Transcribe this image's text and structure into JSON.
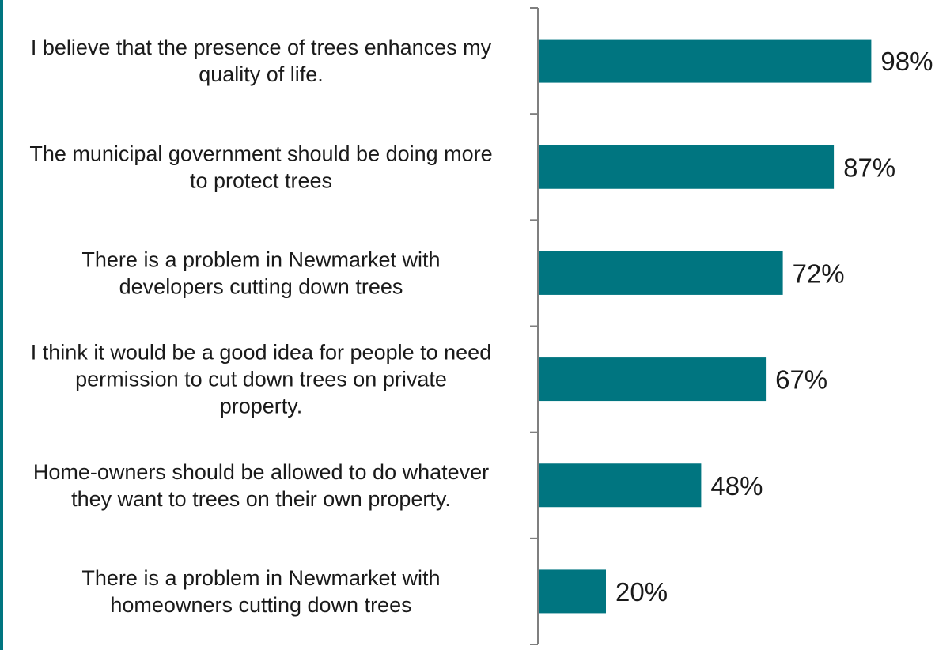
{
  "colors": {
    "bar": "#007580",
    "axis": "#7f7f7f",
    "edge": "#007580"
  },
  "chart_data": {
    "type": "bar",
    "orientation": "horizontal",
    "categories": [
      "I believe that the presence of trees enhances my quality of life.",
      "The municipal government should be doing more to protect trees",
      "There is a problem in Newmarket with developers cutting down trees",
      "I think it would be a good idea for people to need permission to cut down trees on private property.",
      "Home-owners should be allowed to do whatever they want to trees on their own property.",
      "There is a problem in Newmarket with homeowners cutting down trees"
    ],
    "label_lines": [
      [
        "I believe that the presence of trees enhances my",
        "quality of life."
      ],
      [
        "The municipal government should be doing more",
        "to protect trees"
      ],
      [
        "There is a problem in Newmarket with",
        "developers cutting down trees"
      ],
      [
        "I think it would be a good idea for people to need",
        "permission to cut down trees on private",
        "property."
      ],
      [
        "Home-owners should be allowed to do whatever",
        "they want to trees on their own property."
      ],
      [
        "There is a problem in Newmarket with",
        "homeowners cutting down trees"
      ]
    ],
    "values": [
      98,
      87,
      72,
      67,
      48,
      20
    ],
    "value_labels": [
      "98%",
      "87%",
      "72%",
      "67%",
      "48%",
      "20%"
    ],
    "xlim": [
      0,
      100
    ],
    "grid": false,
    "legend": "none"
  }
}
